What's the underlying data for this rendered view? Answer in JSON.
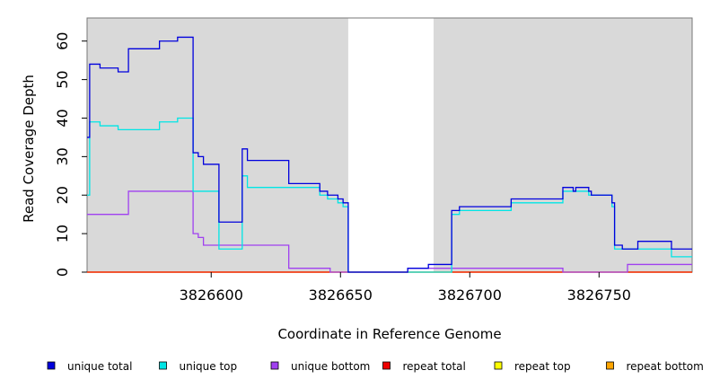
{
  "chart_data": {
    "type": "line",
    "xlabel": "Coordinate in Reference Genome",
    "ylabel": "Read Coverage Depth",
    "xlim": [
      3826552,
      3826786
    ],
    "ylim": [
      0,
      66
    ],
    "x_ticks": [
      3826600,
      3826650,
      3826700,
      3826750
    ],
    "y_ticks": [
      0,
      10,
      20,
      30,
      40,
      50,
      60
    ],
    "shaded_regions": [
      [
        3826552,
        3826653
      ],
      [
        3826686,
        3826786
      ]
    ],
    "shade_color": "#d9d9d9",
    "grid": false,
    "legend_position": "bottom",
    "series": [
      {
        "name": "unique total",
        "color": "#0000dd",
        "points": [
          [
            3826552,
            35
          ],
          [
            3826553,
            54
          ],
          [
            3826557,
            53
          ],
          [
            3826564,
            52
          ],
          [
            3826568,
            58
          ],
          [
            3826580,
            60
          ],
          [
            3826587,
            61
          ],
          [
            3826593,
            31
          ],
          [
            3826595,
            30
          ],
          [
            3826597,
            28
          ],
          [
            3826603,
            13
          ],
          [
            3826612,
            32
          ],
          [
            3826614,
            29
          ],
          [
            3826630,
            23
          ],
          [
            3826642,
            21
          ],
          [
            3826645,
            20
          ],
          [
            3826649,
            19
          ],
          [
            3826651,
            18
          ],
          [
            3826653,
            0
          ],
          [
            3826676,
            1
          ],
          [
            3826684,
            2
          ],
          [
            3826693,
            16
          ],
          [
            3826696,
            17
          ],
          [
            3826716,
            19
          ],
          [
            3826736,
            22
          ],
          [
            3826740,
            21
          ],
          [
            3826741,
            22
          ],
          [
            3826746,
            21
          ],
          [
            3826747,
            20
          ],
          [
            3826755,
            18
          ],
          [
            3826756,
            7
          ],
          [
            3826759,
            6
          ],
          [
            3826765,
            8
          ],
          [
            3826778,
            6
          ],
          [
            3826786,
            6
          ]
        ]
      },
      {
        "name": "unique top",
        "color": "#00e5e5",
        "points": [
          [
            3826552,
            20
          ],
          [
            3826553,
            39
          ],
          [
            3826557,
            38
          ],
          [
            3826564,
            37
          ],
          [
            3826580,
            39
          ],
          [
            3826587,
            40
          ],
          [
            3826593,
            21
          ],
          [
            3826603,
            6
          ],
          [
            3826612,
            25
          ],
          [
            3826614,
            22
          ],
          [
            3826642,
            20
          ],
          [
            3826645,
            19
          ],
          [
            3826649,
            18
          ],
          [
            3826651,
            17
          ],
          [
            3826653,
            0
          ],
          [
            3826693,
            15
          ],
          [
            3826696,
            16
          ],
          [
            3826716,
            18
          ],
          [
            3826736,
            21
          ],
          [
            3826740,
            21
          ],
          [
            3826746,
            20
          ],
          [
            3826755,
            17
          ],
          [
            3826756,
            6
          ],
          [
            3826778,
            4
          ],
          [
            3826786,
            4
          ]
        ]
      },
      {
        "name": "unique bottom",
        "color": "#a040f0",
        "points": [
          [
            3826552,
            15
          ],
          [
            3826568,
            21
          ],
          [
            3826593,
            10
          ],
          [
            3826595,
            9
          ],
          [
            3826597,
            7
          ],
          [
            3826630,
            1
          ],
          [
            3826646,
            0
          ],
          [
            3826676,
            1
          ],
          [
            3826736,
            0
          ],
          [
            3826761,
            2
          ],
          [
            3826786,
            2
          ]
        ]
      },
      {
        "name": "repeat total",
        "color": "#ee0000",
        "points": [
          [
            3826552,
            0
          ],
          [
            3826786,
            0
          ]
        ]
      },
      {
        "name": "repeat top",
        "color": "#ffff00",
        "points": [
          [
            3826552,
            0
          ],
          [
            3826786,
            0
          ]
        ]
      },
      {
        "name": "repeat bottom",
        "color": "#ffa500",
        "points": [
          [
            3826552,
            0
          ],
          [
            3826786,
            0
          ]
        ]
      }
    ]
  }
}
